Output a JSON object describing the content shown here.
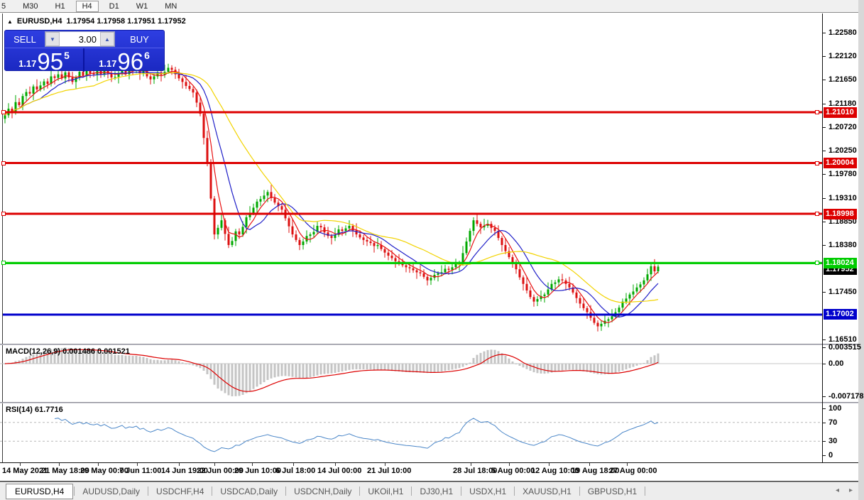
{
  "toolbar": {
    "timeframes": [
      {
        "label": "5",
        "active": false
      },
      {
        "label": "M30",
        "active": false
      },
      {
        "label": "H1",
        "active": false
      },
      {
        "label": "H4",
        "active": true
      },
      {
        "label": "D1",
        "active": false
      },
      {
        "label": "W1",
        "active": false
      },
      {
        "label": "MN",
        "active": false
      }
    ]
  },
  "header": {
    "collapse_icon": "▲",
    "symbol_timeframe": "EURUSD,H4",
    "ohlc_text": "1.17954 1.17958 1.17951 1.17952"
  },
  "trade_panel": {
    "sell_label": "SELL",
    "buy_label": "BUY",
    "volume": "3.00",
    "spin_down_icon": "▼",
    "spin_up_icon": "▲",
    "sell_price": {
      "prefix": "1.17",
      "big": "95",
      "sup": "5"
    },
    "buy_price": {
      "prefix": "1.17",
      "big": "96",
      "sup": "6"
    }
  },
  "tabs": {
    "items": [
      {
        "label": "EURUSD,H4",
        "active": true
      },
      {
        "label": "AUDUSD,Daily",
        "active": false
      },
      {
        "label": "USDCHF,H4",
        "active": false
      },
      {
        "label": "USDCAD,Daily",
        "active": false
      },
      {
        "label": "USDCNH,Daily",
        "active": false
      },
      {
        "label": "UKOil,H1",
        "active": false
      },
      {
        "label": "DJ30,H1",
        "active": false
      },
      {
        "label": "USDX,H1",
        "active": false
      },
      {
        "label": "XAUUSD,H1",
        "active": false
      },
      {
        "label": "GBPUSD,H1",
        "active": false
      }
    ],
    "scroll_left_icon": "◂",
    "scroll_right_icon": "▸"
  },
  "chart_data": {
    "type": "candlestick",
    "symbol": "EURUSD",
    "timeframe": "H4",
    "ohlc_display": {
      "open": "1.17954",
      "high": "1.17958",
      "low": "1.17951",
      "close": "1.17952"
    },
    "colors": {
      "candle_up": "#00a800",
      "candle_down": "#dc1010",
      "ma_fast": "#e81010",
      "ma_mid": "#2020c8",
      "ma_slow": "#f2d300",
      "macd_hist": "#c4c4c4",
      "macd_signal": "#dd0000",
      "rsi_line": "#4a86c8",
      "hline_red": "#dd0000",
      "hline_green": "#00cc00",
      "hline_blue": "#0000cc",
      "current_tag_bg": "#000000"
    },
    "y_ticks": [
      {
        "label": "1.22580",
        "price": 1.2258
      },
      {
        "label": "1.22120",
        "price": 1.2212
      },
      {
        "label": "1.21650",
        "price": 1.2165
      },
      {
        "label": "1.21180",
        "price": 1.2118
      },
      {
        "label": "1.20720",
        "price": 1.2072
      },
      {
        "label": "1.20250",
        "price": 1.2025
      },
      {
        "label": "1.19780",
        "price": 1.1978
      },
      {
        "label": "1.19310",
        "price": 1.1931
      },
      {
        "label": "1.18850",
        "price": 1.1885
      },
      {
        "label": "1.18380",
        "price": 1.1838
      },
      {
        "label": "1.17450",
        "price": 1.1745
      },
      {
        "label": "1.16510",
        "price": 1.1651
      }
    ],
    "price_tags": [
      {
        "label": "1.21010",
        "price": 1.2101,
        "bg": "#dd0000",
        "line": true,
        "width": 3,
        "markers": true
      },
      {
        "label": "1.20004",
        "price": 1.20004,
        "bg": "#dd0000",
        "line": true,
        "width": 3,
        "markers": true
      },
      {
        "label": "1.18998",
        "price": 1.18998,
        "bg": "#dd0000",
        "line": true,
        "width": 3,
        "markers": true
      },
      {
        "label": "1.18024",
        "price": 1.18024,
        "bg": "#00cc00",
        "line": true,
        "width": 3,
        "markers": true
      },
      {
        "label": "1.17002",
        "price": 1.17002,
        "bg": "#0000cc",
        "line": true,
        "width": 3,
        "markers": false
      }
    ],
    "current_price_tag": {
      "label": "1.17952",
      "price": 1.17952,
      "bg": "#000000"
    },
    "closes": [
      1.2095,
      1.2108,
      1.2102,
      1.2121,
      1.2115,
      1.2133,
      1.2141,
      1.2138,
      1.2152,
      1.2146,
      1.2154,
      1.2162,
      1.2157,
      1.2172,
      1.2169,
      1.2176,
      1.2168,
      1.218,
      1.217,
      1.2161,
      1.217,
      1.2181,
      1.2173,
      1.2185,
      1.2178,
      1.2176,
      1.2183,
      1.2175,
      1.2186,
      1.2178,
      1.217,
      1.2171,
      1.2179,
      1.2188,
      1.2176,
      1.2185,
      1.2183,
      1.219,
      1.2178,
      1.2183,
      1.2172,
      1.2166,
      1.2172,
      1.218,
      1.2175,
      1.2181,
      1.2189,
      1.2185,
      1.2176,
      1.2168,
      1.2161,
      1.2153,
      1.2147,
      1.214,
      1.212,
      1.2098,
      1.205,
      1.2,
      1.193,
      1.1859,
      1.1872,
      1.1887,
      1.186,
      1.1838,
      1.1846,
      1.1865,
      1.1859,
      1.1874,
      1.1893,
      1.1901,
      1.1912,
      1.1924,
      1.1929,
      1.1936,
      1.1943,
      1.1931,
      1.1922,
      1.1915,
      1.1908,
      1.1891,
      1.1875,
      1.1859,
      1.1848,
      1.1838,
      1.1845,
      1.1856,
      1.1859,
      1.1864,
      1.1876,
      1.1873,
      1.1863,
      1.1856,
      1.1852,
      1.1858,
      1.1869,
      1.1866,
      1.1871,
      1.1876,
      1.1867,
      1.1859,
      1.1853,
      1.1848,
      1.1845,
      1.1842,
      1.1836,
      1.1838,
      1.183,
      1.1823,
      1.1817,
      1.1812,
      1.1806,
      1.1803,
      1.1798,
      1.1794,
      1.1792,
      1.1788,
      1.1784,
      1.1782,
      1.1775,
      1.1768,
      1.1773,
      1.1779,
      1.1782,
      1.1784,
      1.1791,
      1.1789,
      1.1794,
      1.18,
      1.1803,
      1.1822,
      1.1845,
      1.1866,
      1.1887,
      1.188,
      1.1873,
      1.1876,
      1.188,
      1.1872,
      1.1866,
      1.1852,
      1.1838,
      1.1826,
      1.1814,
      1.1803,
      1.179,
      1.1774,
      1.1761,
      1.1748,
      1.1735,
      1.1726,
      1.1731,
      1.1737,
      1.174,
      1.175,
      1.1761,
      1.1764,
      1.177,
      1.1768,
      1.1761,
      1.1754,
      1.1744,
      1.1733,
      1.1722,
      1.1713,
      1.1705,
      1.1694,
      1.1684,
      1.1677,
      1.1682,
      1.1688,
      1.1691,
      1.1697,
      1.1705,
      1.1714,
      1.1726,
      1.1732,
      1.174,
      1.1746,
      1.1754,
      1.176,
      1.1768,
      1.178,
      1.1796,
      1.1786,
      1.17952
    ],
    "ma_overlays": [
      {
        "name": "fast",
        "window": 5,
        "color": "#e81010"
      },
      {
        "name": "mid",
        "window": 11,
        "color": "#2020c8"
      },
      {
        "name": "slow",
        "window": 26,
        "color": "#f2d300"
      }
    ],
    "macd": {
      "label": "MACD(12,26,9) 0.001486 0.001521",
      "params": [
        12,
        26,
        9
      ],
      "current_main": 0.001486,
      "current_signal": 0.001521,
      "axis": [
        {
          "label": "0.003515",
          "value": 0.003515
        },
        {
          "label": "0.00",
          "value": 0
        },
        {
          "label": "-0.007178",
          "value": -0.007178
        }
      ]
    },
    "rsi": {
      "label": "RSI(14) 61.7716",
      "period": 14,
      "current": 61.7716,
      "levels": [
        70,
        30
      ],
      "axis": [
        {
          "label": "100",
          "value": 100
        },
        {
          "label": "70",
          "value": 70
        },
        {
          "label": "30",
          "value": 30
        },
        {
          "label": "0",
          "value": 0
        }
      ]
    },
    "x_labels": [
      {
        "text": "14 May 2021",
        "x": 3
      },
      {
        "text": "21 May 18:00",
        "x": 58
      },
      {
        "text": "29 May 00:00",
        "x": 113
      },
      {
        "text": "7 Jun 11:00",
        "x": 168
      },
      {
        "text": "14 Jun 19:00",
        "x": 227
      },
      {
        "text": "22 Jun 00:00",
        "x": 277
      },
      {
        "text": "29 Jun 10:00",
        "x": 330
      },
      {
        "text": "6 Jul 18:00",
        "x": 388
      },
      {
        "text": "14 Jul 00:00",
        "x": 447
      },
      {
        "text": "21 Jul 10:00",
        "x": 517
      },
      {
        "text": "28 Jul 18:00",
        "x": 638
      },
      {
        "text": "5 Aug 00:00",
        "x": 692
      },
      {
        "text": "12 Aug 10:00",
        "x": 748
      },
      {
        "text": "19 Aug 18:00",
        "x": 805
      },
      {
        "text": "27 Aug 00:00",
        "x": 858
      }
    ]
  }
}
